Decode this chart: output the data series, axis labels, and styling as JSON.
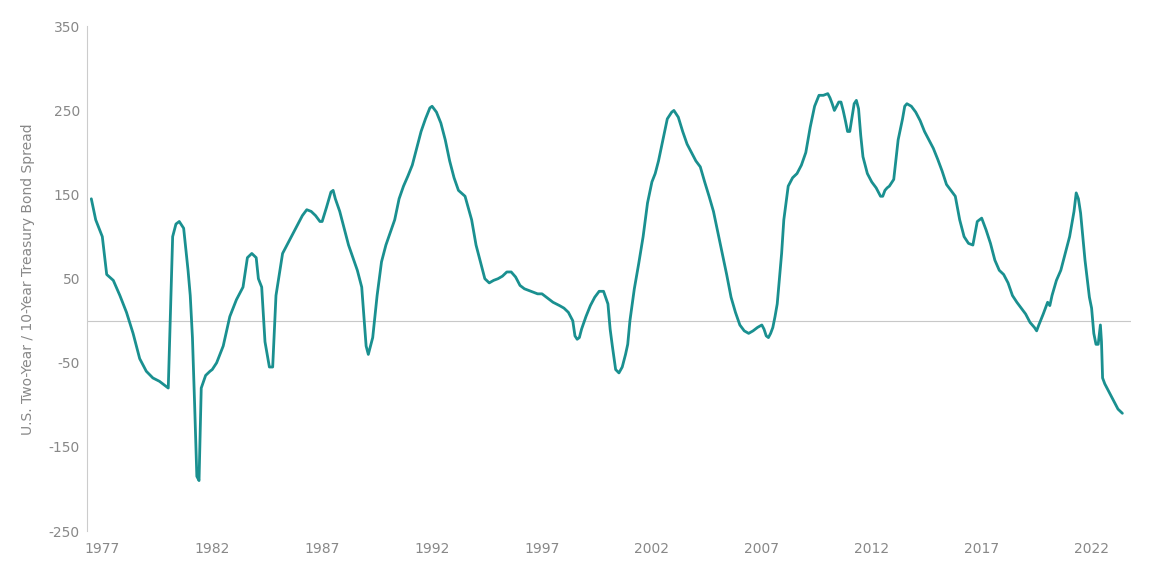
{
  "ylabel": "U.S. Two-Year / 10-Year Treasury Bond Spread",
  "line_color": "#1a9090",
  "background_color": "#ffffff",
  "zero_line_color": "#c8c8c8",
  "ylim": [
    -250,
    350
  ],
  "yticks": [
    -250,
    -150,
    -50,
    50,
    150,
    250,
    350
  ],
  "ytick_labels": [
    "-250",
    "-150",
    "-50",
    "50",
    "150",
    "250",
    "350"
  ],
  "xticks": [
    1977,
    1982,
    1987,
    1992,
    1997,
    2002,
    2007,
    2012,
    2017,
    2022
  ],
  "xlim": [
    1976.3,
    2023.8
  ],
  "line_width": 2.0,
  "data": [
    [
      1976.5,
      145
    ],
    [
      1976.7,
      120
    ],
    [
      1977.0,
      100
    ],
    [
      1977.2,
      55
    ],
    [
      1977.5,
      48
    ],
    [
      1977.8,
      30
    ],
    [
      1978.1,
      10
    ],
    [
      1978.4,
      -15
    ],
    [
      1978.7,
      -45
    ],
    [
      1979.0,
      -60
    ],
    [
      1979.3,
      -68
    ],
    [
      1979.6,
      -72
    ],
    [
      1979.9,
      -78
    ],
    [
      1980.0,
      -80
    ],
    [
      1980.2,
      100
    ],
    [
      1980.35,
      115
    ],
    [
      1980.5,
      118
    ],
    [
      1980.7,
      110
    ],
    [
      1980.9,
      60
    ],
    [
      1981.0,
      30
    ],
    [
      1981.1,
      -20
    ],
    [
      1981.2,
      -100
    ],
    [
      1981.3,
      -185
    ],
    [
      1981.4,
      -190
    ],
    [
      1981.5,
      -80
    ],
    [
      1981.7,
      -65
    ],
    [
      1981.9,
      -60
    ],
    [
      1982.0,
      -58
    ],
    [
      1982.2,
      -50
    ],
    [
      1982.5,
      -30
    ],
    [
      1982.8,
      5
    ],
    [
      1983.1,
      25
    ],
    [
      1983.4,
      40
    ],
    [
      1983.6,
      75
    ],
    [
      1983.8,
      80
    ],
    [
      1984.0,
      75
    ],
    [
      1984.1,
      50
    ],
    [
      1984.25,
      40
    ],
    [
      1984.4,
      -25
    ],
    [
      1984.6,
      -55
    ],
    [
      1984.75,
      -55
    ],
    [
      1984.9,
      30
    ],
    [
      1985.2,
      80
    ],
    [
      1985.5,
      95
    ],
    [
      1985.8,
      110
    ],
    [
      1986.1,
      125
    ],
    [
      1986.3,
      132
    ],
    [
      1986.5,
      130
    ],
    [
      1986.7,
      125
    ],
    [
      1986.9,
      118
    ],
    [
      1987.0,
      118
    ],
    [
      1987.2,
      135
    ],
    [
      1987.4,
      153
    ],
    [
      1987.5,
      155
    ],
    [
      1987.6,
      145
    ],
    [
      1987.8,
      130
    ],
    [
      1988.0,
      110
    ],
    [
      1988.2,
      90
    ],
    [
      1988.4,
      75
    ],
    [
      1988.6,
      60
    ],
    [
      1988.8,
      40
    ],
    [
      1989.0,
      -30
    ],
    [
      1989.1,
      -40
    ],
    [
      1989.3,
      -20
    ],
    [
      1989.5,
      30
    ],
    [
      1989.7,
      70
    ],
    [
      1989.9,
      90
    ],
    [
      1990.1,
      105
    ],
    [
      1990.3,
      120
    ],
    [
      1990.5,
      145
    ],
    [
      1990.7,
      160
    ],
    [
      1990.9,
      172
    ],
    [
      1991.1,
      185
    ],
    [
      1991.3,
      205
    ],
    [
      1991.5,
      225
    ],
    [
      1991.7,
      240
    ],
    [
      1991.9,
      253
    ],
    [
      1992.0,
      255
    ],
    [
      1992.2,
      248
    ],
    [
      1992.4,
      235
    ],
    [
      1992.6,
      215
    ],
    [
      1992.8,
      190
    ],
    [
      1993.0,
      170
    ],
    [
      1993.2,
      155
    ],
    [
      1993.5,
      148
    ],
    [
      1993.8,
      120
    ],
    [
      1994.0,
      90
    ],
    [
      1994.2,
      70
    ],
    [
      1994.4,
      50
    ],
    [
      1994.6,
      45
    ],
    [
      1994.8,
      48
    ],
    [
      1995.0,
      50
    ],
    [
      1995.2,
      53
    ],
    [
      1995.4,
      58
    ],
    [
      1995.6,
      58
    ],
    [
      1995.8,
      52
    ],
    [
      1996.0,
      42
    ],
    [
      1996.2,
      38
    ],
    [
      1996.5,
      35
    ],
    [
      1996.8,
      32
    ],
    [
      1997.0,
      32
    ],
    [
      1997.2,
      28
    ],
    [
      1997.5,
      22
    ],
    [
      1997.8,
      18
    ],
    [
      1998.0,
      15
    ],
    [
      1998.2,
      10
    ],
    [
      1998.4,
      0
    ],
    [
      1998.5,
      -18
    ],
    [
      1998.6,
      -22
    ],
    [
      1998.7,
      -20
    ],
    [
      1998.8,
      -10
    ],
    [
      1999.0,
      5
    ],
    [
      1999.2,
      18
    ],
    [
      1999.4,
      28
    ],
    [
      1999.6,
      35
    ],
    [
      1999.8,
      35
    ],
    [
      2000.0,
      20
    ],
    [
      2000.1,
      -10
    ],
    [
      2000.2,
      -30
    ],
    [
      2000.35,
      -58
    ],
    [
      2000.5,
      -62
    ],
    [
      2000.65,
      -55
    ],
    [
      2000.8,
      -40
    ],
    [
      2000.9,
      -28
    ],
    [
      2001.0,
      0
    ],
    [
      2001.2,
      38
    ],
    [
      2001.4,
      68
    ],
    [
      2001.6,
      100
    ],
    [
      2001.8,
      140
    ],
    [
      2002.0,
      165
    ],
    [
      2002.15,
      175
    ],
    [
      2002.3,
      190
    ],
    [
      2002.5,
      215
    ],
    [
      2002.7,
      240
    ],
    [
      2002.9,
      248
    ],
    [
      2003.0,
      250
    ],
    [
      2003.2,
      242
    ],
    [
      2003.4,
      225
    ],
    [
      2003.6,
      210
    ],
    [
      2003.8,
      200
    ],
    [
      2004.0,
      190
    ],
    [
      2004.2,
      183
    ],
    [
      2004.4,
      165
    ],
    [
      2004.6,
      148
    ],
    [
      2004.8,
      130
    ],
    [
      2005.0,
      105
    ],
    [
      2005.2,
      80
    ],
    [
      2005.4,
      55
    ],
    [
      2005.6,
      28
    ],
    [
      2005.8,
      10
    ],
    [
      2006.0,
      -5
    ],
    [
      2006.2,
      -12
    ],
    [
      2006.4,
      -15
    ],
    [
      2006.6,
      -12
    ],
    [
      2006.8,
      -8
    ],
    [
      2007.0,
      -5
    ],
    [
      2007.1,
      -10
    ],
    [
      2007.2,
      -18
    ],
    [
      2007.3,
      -20
    ],
    [
      2007.4,
      -15
    ],
    [
      2007.5,
      -8
    ],
    [
      2007.6,
      5
    ],
    [
      2007.7,
      20
    ],
    [
      2007.8,
      50
    ],
    [
      2007.9,
      80
    ],
    [
      2008.0,
      120
    ],
    [
      2008.2,
      160
    ],
    [
      2008.4,
      170
    ],
    [
      2008.6,
      175
    ],
    [
      2008.8,
      185
    ],
    [
      2009.0,
      200
    ],
    [
      2009.2,
      230
    ],
    [
      2009.4,
      255
    ],
    [
      2009.6,
      268
    ],
    [
      2009.8,
      268
    ],
    [
      2010.0,
      270
    ],
    [
      2010.1,
      265
    ],
    [
      2010.2,
      258
    ],
    [
      2010.3,
      250
    ],
    [
      2010.4,
      255
    ],
    [
      2010.5,
      260
    ],
    [
      2010.6,
      260
    ],
    [
      2010.7,
      250
    ],
    [
      2010.8,
      238
    ],
    [
      2010.9,
      225
    ],
    [
      2011.0,
      225
    ],
    [
      2011.2,
      258
    ],
    [
      2011.3,
      262
    ],
    [
      2011.4,
      252
    ],
    [
      2011.5,
      220
    ],
    [
      2011.6,
      195
    ],
    [
      2011.8,
      175
    ],
    [
      2012.0,
      165
    ],
    [
      2012.2,
      158
    ],
    [
      2012.4,
      148
    ],
    [
      2012.5,
      148
    ],
    [
      2012.6,
      155
    ],
    [
      2012.7,
      158
    ],
    [
      2012.8,
      160
    ],
    [
      2013.0,
      168
    ],
    [
      2013.2,
      215
    ],
    [
      2013.4,
      240
    ],
    [
      2013.5,
      255
    ],
    [
      2013.6,
      258
    ],
    [
      2013.8,
      255
    ],
    [
      2014.0,
      248
    ],
    [
      2014.2,
      238
    ],
    [
      2014.4,
      225
    ],
    [
      2014.6,
      215
    ],
    [
      2014.8,
      205
    ],
    [
      2015.0,
      192
    ],
    [
      2015.2,
      178
    ],
    [
      2015.4,
      162
    ],
    [
      2015.6,
      155
    ],
    [
      2015.8,
      148
    ],
    [
      2016.0,
      120
    ],
    [
      2016.2,
      100
    ],
    [
      2016.4,
      92
    ],
    [
      2016.6,
      90
    ],
    [
      2016.8,
      118
    ],
    [
      2017.0,
      122
    ],
    [
      2017.2,
      108
    ],
    [
      2017.4,
      92
    ],
    [
      2017.6,
      72
    ],
    [
      2017.8,
      60
    ],
    [
      2018.0,
      55
    ],
    [
      2018.2,
      45
    ],
    [
      2018.4,
      30
    ],
    [
      2018.6,
      22
    ],
    [
      2018.8,
      15
    ],
    [
      2019.0,
      8
    ],
    [
      2019.2,
      -2
    ],
    [
      2019.4,
      -8
    ],
    [
      2019.5,
      -12
    ],
    [
      2019.6,
      -5
    ],
    [
      2019.8,
      8
    ],
    [
      2020.0,
      22
    ],
    [
      2020.1,
      18
    ],
    [
      2020.2,
      30
    ],
    [
      2020.4,
      48
    ],
    [
      2020.6,
      60
    ],
    [
      2020.8,
      80
    ],
    [
      2021.0,
      100
    ],
    [
      2021.2,
      130
    ],
    [
      2021.3,
      152
    ],
    [
      2021.4,
      145
    ],
    [
      2021.5,
      128
    ],
    [
      2021.6,
      100
    ],
    [
      2021.7,
      72
    ],
    [
      2021.8,
      50
    ],
    [
      2021.9,
      28
    ],
    [
      2022.0,
      15
    ],
    [
      2022.1,
      -15
    ],
    [
      2022.2,
      -28
    ],
    [
      2022.3,
      -28
    ],
    [
      2022.4,
      -5
    ],
    [
      2022.45,
      -25
    ],
    [
      2022.5,
      -68
    ],
    [
      2022.6,
      -75
    ],
    [
      2022.7,
      -80
    ],
    [
      2022.8,
      -85
    ],
    [
      2022.9,
      -90
    ],
    [
      2023.0,
      -95
    ],
    [
      2023.2,
      -105
    ],
    [
      2023.4,
      -110
    ]
  ]
}
